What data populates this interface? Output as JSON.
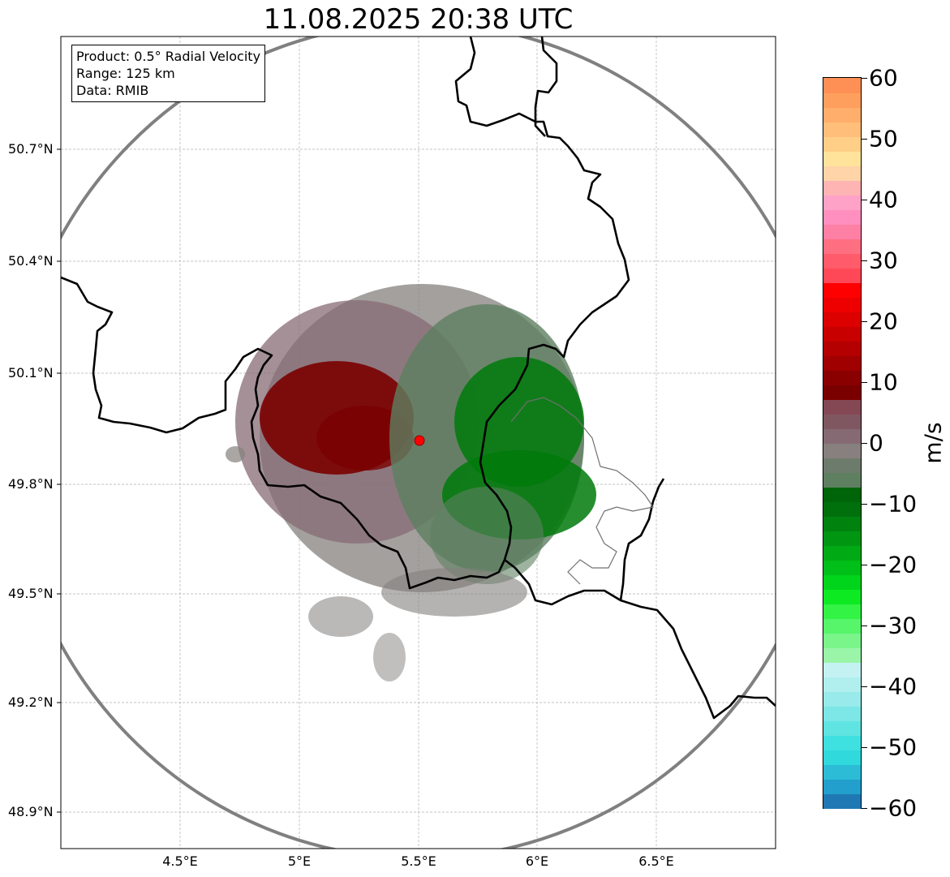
{
  "title": "11.08.2025 20:38 UTC",
  "info": {
    "product": "Product: 0.5° Radial Velocity",
    "range": "Range: 125 km",
    "source": "Data: RMIB"
  },
  "axes": {
    "lat_ticks": [
      "50.7°N",
      "50.4°N",
      "50.1°N",
      "49.8°N",
      "49.5°N",
      "49.2°N",
      "48.9°N"
    ],
    "lon_ticks": [
      "4.5°E",
      "5°E",
      "5.5°E",
      "6°E",
      "6.5°E"
    ]
  },
  "radar": {
    "site_marker": "radar-site",
    "color": "#ff0000"
  },
  "colorbar": {
    "unit": "m/s",
    "ticks": [
      "60",
      "50",
      "40",
      "30",
      "20",
      "10",
      "0",
      "−10",
      "−20",
      "−30",
      "−40",
      "−50",
      "−60"
    ],
    "colors": [
      "#1f78b4",
      "#229fcc",
      "#2cbcd6",
      "#2fd9dc",
      "#3fe0e0",
      "#5fe4e2",
      "#7ce7e6",
      "#98ebea",
      "#b0efee",
      "#c4f2f2",
      "#9af5a8",
      "#7af58a",
      "#56f56a",
      "#33f345",
      "#0eea22",
      "#00d41b",
      "#00bf18",
      "#00aa15",
      "#009612",
      "#00820f",
      "#00700c",
      "#006409",
      "#5e8060",
      "#6d7b6c",
      "#87807e",
      "#856a74",
      "#7f5760",
      "#844854",
      "#7a0000",
      "#8a0000",
      "#a00000",
      "#b40000",
      "#c80000",
      "#dc0000",
      "#ee0000",
      "#ff0000",
      "#ff4857",
      "#ff5b6a",
      "#ff6f82",
      "#ff80a5",
      "#ff8fbe",
      "#ffa2c8",
      "#ffb4b4",
      "#ffd4a8",
      "#ffe39a",
      "#ffcf87",
      "#ffbf7a",
      "#ffae6b",
      "#ff9f5d",
      "#ff9055"
    ],
    "legend_colors": {
      "positive": "#7a0000",
      "negative": "#007a0a",
      "near_zero": "#84807d"
    }
  }
}
